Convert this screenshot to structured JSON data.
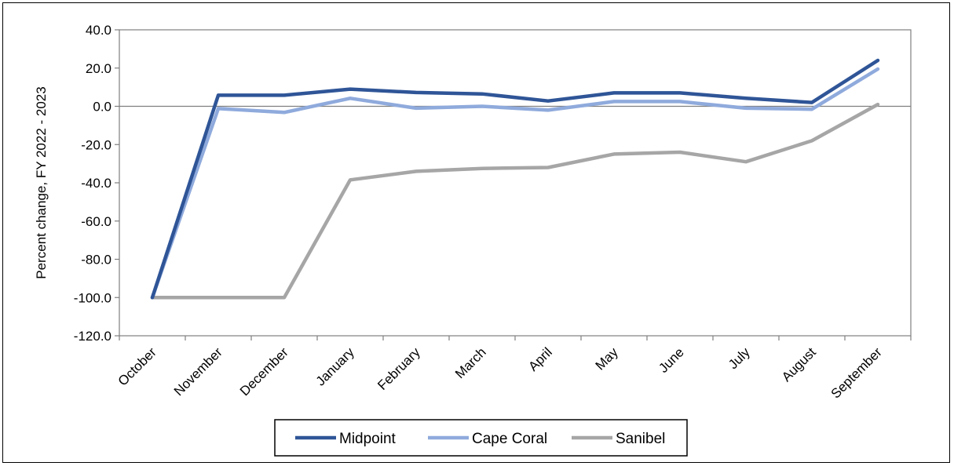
{
  "chart_data": {
    "type": "line",
    "title": "",
    "ylabel": "Percent change, FY 2022 - 2023",
    "xlabel": "",
    "ylim": [
      -120,
      40
    ],
    "yticks": [
      40,
      20,
      0,
      -20,
      -40,
      -60,
      -80,
      -100,
      -120
    ],
    "ytick_labels": [
      "40.0",
      "20.0",
      "0.0",
      "-20.0",
      "-40.0",
      "-60.0",
      "-80.0",
      "-100.0",
      "-120.0"
    ],
    "grid": false,
    "legend_position": "bottom",
    "categories": [
      "October",
      "November",
      "December",
      "January",
      "February",
      "March",
      "April",
      "May",
      "June",
      "July",
      "August",
      "September"
    ],
    "series": [
      {
        "name": "Midpoint",
        "color": "#2F5597",
        "values": [
          -100,
          5.8,
          5.8,
          9,
          7.2,
          6.5,
          2.8,
          7,
          7,
          4.2,
          2,
          24
        ]
      },
      {
        "name": "Cape Coral",
        "color": "#8FAADC",
        "values": [
          -100,
          -1.2,
          -3.2,
          4.2,
          -1,
          0,
          -2,
          2.5,
          2.5,
          -1,
          -1.5,
          19.5
        ]
      },
      {
        "name": "Sanibel",
        "color": "#A6A6A6",
        "values": [
          -100,
          -100,
          -100,
          -38.5,
          -34,
          -32.5,
          -32,
          -25,
          -24,
          -29,
          -18,
          1
        ]
      }
    ]
  }
}
